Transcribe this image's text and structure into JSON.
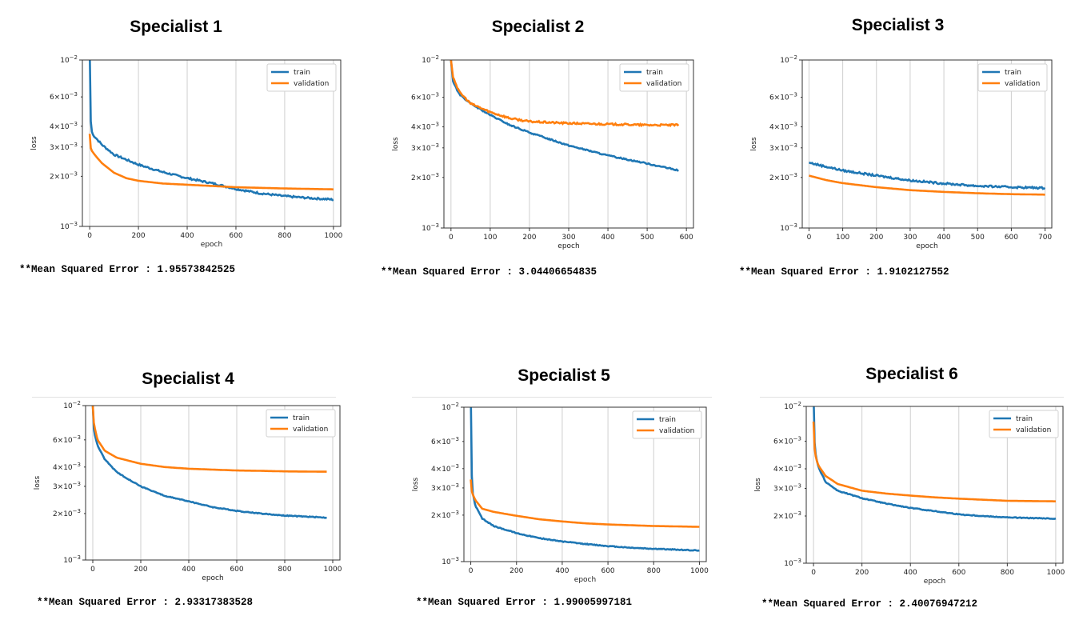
{
  "chart_data": [
    {
      "type": "line",
      "title": "Specialist 1",
      "xlabel": "epoch",
      "ylabel": "loss",
      "yscale": "log",
      "ylim": [
        0.001,
        0.01
      ],
      "xlim": [
        -30,
        1030
      ],
      "xticks": [
        0,
        200,
        400,
        600,
        800,
        1000
      ],
      "grid": "x",
      "legend": "top-right",
      "mse_label": "**Mean Squared Error : 1.95573842525",
      "series": [
        {
          "name": "train",
          "color": "#1f77b4",
          "noise": 0.012,
          "x": [
            0,
            3,
            10,
            50,
            100,
            200,
            300,
            400,
            500,
            600,
            700,
            800,
            900,
            1000
          ],
          "y": [
            0.012,
            0.0045,
            0.0036,
            0.0031,
            0.0027,
            0.00235,
            0.00212,
            0.00195,
            0.00182,
            0.00168,
            0.00158,
            0.00152,
            0.00148,
            0.00145
          ]
        },
        {
          "name": "validation",
          "color": "#ff7f0e",
          "noise": 0.0,
          "x": [
            0,
            5,
            20,
            50,
            100,
            150,
            200,
            300,
            400,
            500,
            600,
            800,
            1000
          ],
          "y": [
            0.0036,
            0.0029,
            0.0027,
            0.0024,
            0.0021,
            0.00195,
            0.00188,
            0.00181,
            0.00178,
            0.00175,
            0.00172,
            0.00169,
            0.00167
          ]
        }
      ]
    },
    {
      "type": "line",
      "title": "Specialist 2",
      "xlabel": "epoch",
      "ylabel": "loss",
      "yscale": "log",
      "ylim": [
        0.001,
        0.01
      ],
      "xlim": [
        -18,
        618
      ],
      "xticks": [
        0,
        100,
        200,
        300,
        400,
        500,
        600
      ],
      "grid": "x",
      "legend": "top-right",
      "mse_label": "**Mean Squared Error : 3.04406654835",
      "series": [
        {
          "name": "train",
          "color": "#1f77b4",
          "noise": 0.008,
          "x": [
            0,
            5,
            20,
            50,
            100,
            150,
            200,
            300,
            400,
            500,
            580
          ],
          "y": [
            0.01,
            0.0075,
            0.0063,
            0.0055,
            0.0047,
            0.0041,
            0.0037,
            0.0031,
            0.0027,
            0.00242,
            0.0022
          ]
        },
        {
          "name": "validation",
          "color": "#ff7f0e",
          "noise": 0.012,
          "x": [
            0,
            5,
            20,
            50,
            100,
            150,
            200,
            300,
            400,
            500,
            580
          ],
          "y": [
            0.01,
            0.008,
            0.0065,
            0.0055,
            0.0049,
            0.0045,
            0.0043,
            0.0042,
            0.00415,
            0.0041,
            0.0041
          ]
        }
      ]
    },
    {
      "type": "line",
      "title": "Specialist 3",
      "xlabel": "epoch",
      "ylabel": "loss",
      "yscale": "log",
      "ylim": [
        0.001,
        0.01
      ],
      "xlim": [
        -20,
        720
      ],
      "xticks": [
        0,
        100,
        200,
        300,
        400,
        500,
        600,
        700
      ],
      "grid": "x",
      "legend": "top-right",
      "mse_label": "**Mean Squared Error : 1.9102127552",
      "series": [
        {
          "name": "train",
          "color": "#1f77b4",
          "noise": 0.012,
          "x": [
            0,
            50,
            100,
            200,
            300,
            400,
            500,
            600,
            700
          ],
          "y": [
            0.00245,
            0.00232,
            0.0022,
            0.00205,
            0.00192,
            0.00184,
            0.00178,
            0.00175,
            0.00173
          ]
        },
        {
          "name": "validation",
          "color": "#ff7f0e",
          "noise": 0.0,
          "x": [
            0,
            50,
            100,
            200,
            300,
            400,
            500,
            600,
            700
          ],
          "y": [
            0.00205,
            0.00193,
            0.00185,
            0.00175,
            0.00168,
            0.00164,
            0.00161,
            0.00159,
            0.00158
          ]
        }
      ]
    },
    {
      "type": "line",
      "title": "Specialist 4",
      "xlabel": "epoch",
      "ylabel": "loss",
      "yscale": "log",
      "ylim": [
        0.001,
        0.01
      ],
      "xlim": [
        -30,
        1030
      ],
      "xticks": [
        0,
        200,
        400,
        600,
        800,
        1000
      ],
      "grid": "x",
      "legend": "top-right",
      "mse_label": "**Mean Squared Error : 2.93317383528",
      "series": [
        {
          "name": "train",
          "color": "#1f77b4",
          "noise": 0.006,
          "x": [
            0,
            5,
            20,
            50,
            100,
            200,
            300,
            400,
            500,
            600,
            700,
            800,
            975
          ],
          "y": [
            0.01,
            0.0068,
            0.0055,
            0.0045,
            0.0037,
            0.003,
            0.0026,
            0.0024,
            0.0022,
            0.00208,
            0.002,
            0.00194,
            0.00188
          ]
        },
        {
          "name": "validation",
          "color": "#ff7f0e",
          "noise": 0.0,
          "x": [
            0,
            5,
            20,
            50,
            100,
            200,
            300,
            400,
            500,
            600,
            700,
            800,
            975
          ],
          "y": [
            0.01,
            0.0075,
            0.006,
            0.0051,
            0.0046,
            0.0042,
            0.004,
            0.0039,
            0.00385,
            0.0038,
            0.00378,
            0.00375,
            0.00373
          ]
        }
      ]
    },
    {
      "type": "line",
      "title": "Specialist 5",
      "xlabel": "epoch",
      "ylabel": "loss",
      "yscale": "log",
      "ylim": [
        0.001,
        0.01
      ],
      "xlim": [
        -30,
        1030
      ],
      "xticks": [
        0,
        200,
        400,
        600,
        800,
        1000
      ],
      "grid": "x",
      "legend": "top-right",
      "mse_label": "**Mean Squared Error : 1.99005997181",
      "series": [
        {
          "name": "train",
          "color": "#1f77b4",
          "noise": 0.006,
          "x": [
            0,
            3,
            8,
            20,
            50,
            100,
            200,
            300,
            400,
            500,
            600,
            700,
            800,
            1000
          ],
          "y": [
            0.012,
            0.004,
            0.0028,
            0.0023,
            0.0019,
            0.0017,
            0.00153,
            0.00142,
            0.00135,
            0.0013,
            0.00126,
            0.00123,
            0.00121,
            0.00118
          ]
        },
        {
          "name": "validation",
          "color": "#ff7f0e",
          "noise": 0.0,
          "x": [
            0,
            5,
            20,
            50,
            100,
            200,
            300,
            400,
            500,
            600,
            700,
            800,
            1000
          ],
          "y": [
            0.0034,
            0.0028,
            0.0025,
            0.0022,
            0.0021,
            0.00198,
            0.00188,
            0.00182,
            0.00177,
            0.00174,
            0.00172,
            0.0017,
            0.00168
          ]
        }
      ]
    },
    {
      "type": "line",
      "title": "Specialist 6",
      "xlabel": "epoch",
      "ylabel": "loss",
      "yscale": "log",
      "ylim": [
        0.001,
        0.01
      ],
      "xlim": [
        -30,
        1030
      ],
      "xticks": [
        0,
        200,
        400,
        600,
        800,
        1000
      ],
      "grid": "x",
      "legend": "top-right",
      "mse_label": "**Mean Squared Error : 2.40076947212",
      "series": [
        {
          "name": "train",
          "color": "#1f77b4",
          "noise": 0.006,
          "x": [
            0,
            3,
            10,
            20,
            50,
            100,
            200,
            300,
            400,
            500,
            600,
            700,
            800,
            1000
          ],
          "y": [
            0.012,
            0.0062,
            0.0048,
            0.0041,
            0.0033,
            0.0029,
            0.0026,
            0.0024,
            0.00225,
            0.00215,
            0.00205,
            0.002,
            0.00196,
            0.00192
          ]
        },
        {
          "name": "validation",
          "color": "#ff7f0e",
          "noise": 0.0,
          "x": [
            0,
            3,
            10,
            20,
            50,
            100,
            200,
            300,
            400,
            500,
            600,
            700,
            800,
            1000
          ],
          "y": [
            0.008,
            0.0056,
            0.0047,
            0.0042,
            0.0036,
            0.0032,
            0.0029,
            0.00278,
            0.0027,
            0.00263,
            0.00258,
            0.00254,
            0.0025,
            0.00248
          ]
        }
      ]
    }
  ]
}
